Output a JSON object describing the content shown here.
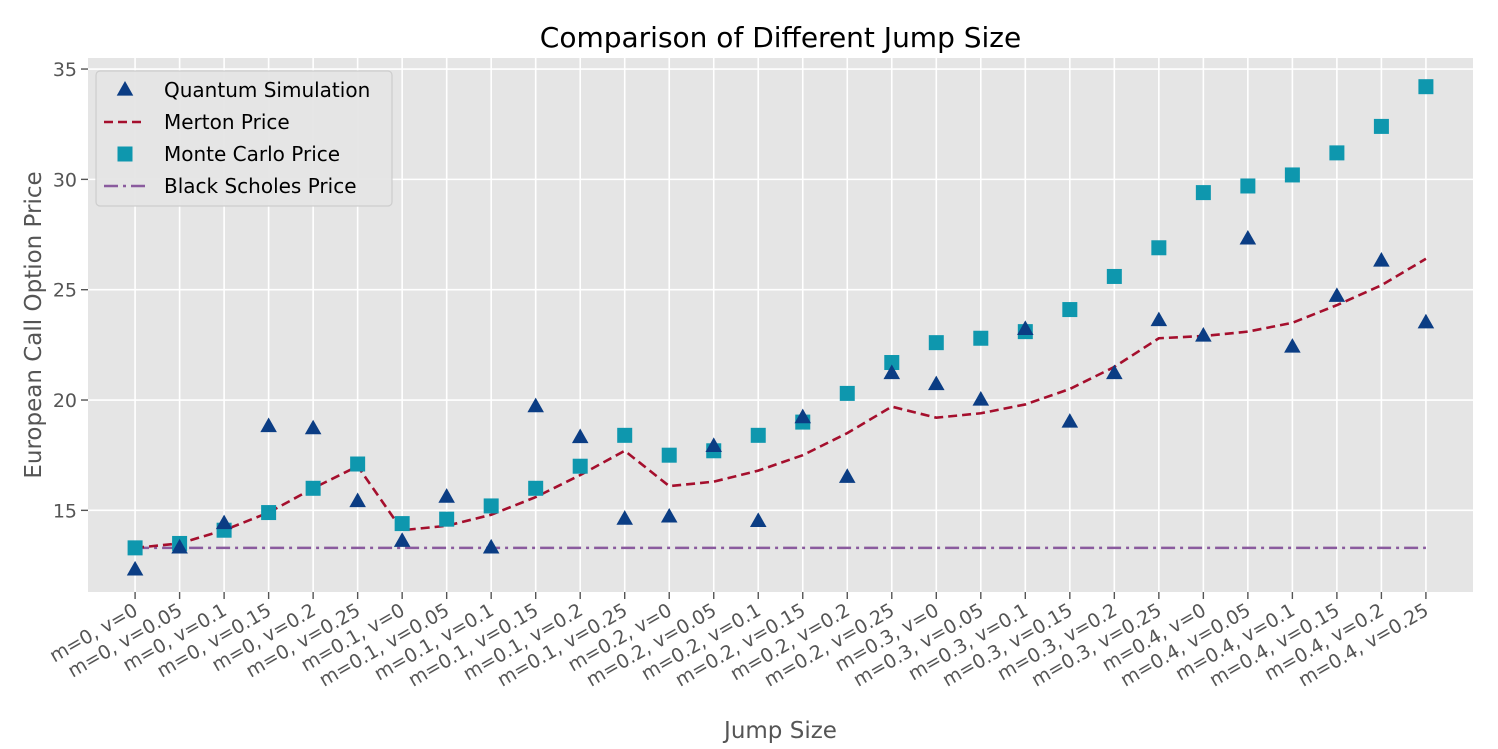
{
  "colors": {
    "plot_bg": "#e5e5e5",
    "grid": "#ffffff",
    "quantum": "#0b3d84",
    "merton": "#a50f2d",
    "monte_carlo": "#0e97ae",
    "black_scholes": "#8a5b9e"
  },
  "chart_data": {
    "type": "line",
    "title": "Comparison of Different Jump Size",
    "xlabel": "Jump Size",
    "ylabel": "European Call Option Price",
    "ylim": [
      11.3,
      35.5
    ],
    "yticks": [
      15,
      20,
      25,
      30,
      35
    ],
    "grid": true,
    "legend_position": "top-left",
    "categories": [
      "m=0, v=0",
      "m=0, v=0.05",
      "m=0, v=0.1",
      "m=0, v=0.15",
      "m=0, v=0.2",
      "m=0, v=0.25",
      "m=0.1, v=0",
      "m=0.1, v=0.05",
      "m=0.1, v=0.1",
      "m=0.1, v=0.15",
      "m=0.1, v=0.2",
      "m=0.1, v=0.25",
      "m=0.2, v=0",
      "m=0.2, v=0.05",
      "m=0.2, v=0.1",
      "m=0.2, v=0.15",
      "m=0.2, v=0.2",
      "m=0.2, v=0.25",
      "m=0.3, v=0",
      "m=0.3, v=0.05",
      "m=0.3, v=0.1",
      "m=0.3, v=0.15",
      "m=0.3, v=0.2",
      "m=0.3, v=0.25",
      "m=0.4, v=0",
      "m=0.4, v=0.05",
      "m=0.4, v=0.1",
      "m=0.4, v=0.15",
      "m=0.4, v=0.2",
      "m=0.4, v=0.25"
    ],
    "series": [
      {
        "name": "Quantum Simulation",
        "kind": "triangle",
        "values": [
          12.3,
          13.3,
          14.4,
          18.8,
          18.7,
          15.4,
          13.6,
          15.6,
          13.3,
          19.7,
          18.3,
          14.6,
          14.7,
          17.9,
          14.5,
          19.2,
          16.5,
          21.2,
          20.7,
          20.0,
          23.2,
          19.0,
          21.2,
          23.6,
          22.9,
          27.3,
          22.4,
          24.7,
          26.3,
          23.5
        ]
      },
      {
        "name": "Merton Price",
        "kind": "dashed",
        "values": [
          13.3,
          13.5,
          14.1,
          14.9,
          16.0,
          17.0,
          14.1,
          14.3,
          14.8,
          15.6,
          16.6,
          17.7,
          16.1,
          16.3,
          16.8,
          17.5,
          18.5,
          19.7,
          19.2,
          19.4,
          19.8,
          20.5,
          21.5,
          22.8,
          22.9,
          23.1,
          23.5,
          24.3,
          25.2,
          26.4
        ]
      },
      {
        "name": "Monte Carlo Price",
        "kind": "square",
        "values": [
          13.3,
          13.5,
          14.1,
          14.9,
          16.0,
          17.1,
          14.4,
          14.6,
          15.2,
          16.0,
          17.0,
          18.4,
          17.5,
          17.7,
          18.4,
          19.0,
          20.3,
          21.7,
          22.6,
          22.8,
          23.1,
          24.1,
          25.6,
          26.9,
          29.4,
          29.7,
          30.2,
          31.2,
          32.4,
          34.2
        ]
      },
      {
        "name": "Black Scholes Price",
        "kind": "dashdot",
        "values": [
          13.3,
          13.3,
          13.3,
          13.3,
          13.3,
          13.3,
          13.3,
          13.3,
          13.3,
          13.3,
          13.3,
          13.3,
          13.3,
          13.3,
          13.3,
          13.3,
          13.3,
          13.3,
          13.3,
          13.3,
          13.3,
          13.3,
          13.3,
          13.3,
          13.3,
          13.3,
          13.3,
          13.3,
          13.3,
          13.3
        ]
      }
    ]
  }
}
